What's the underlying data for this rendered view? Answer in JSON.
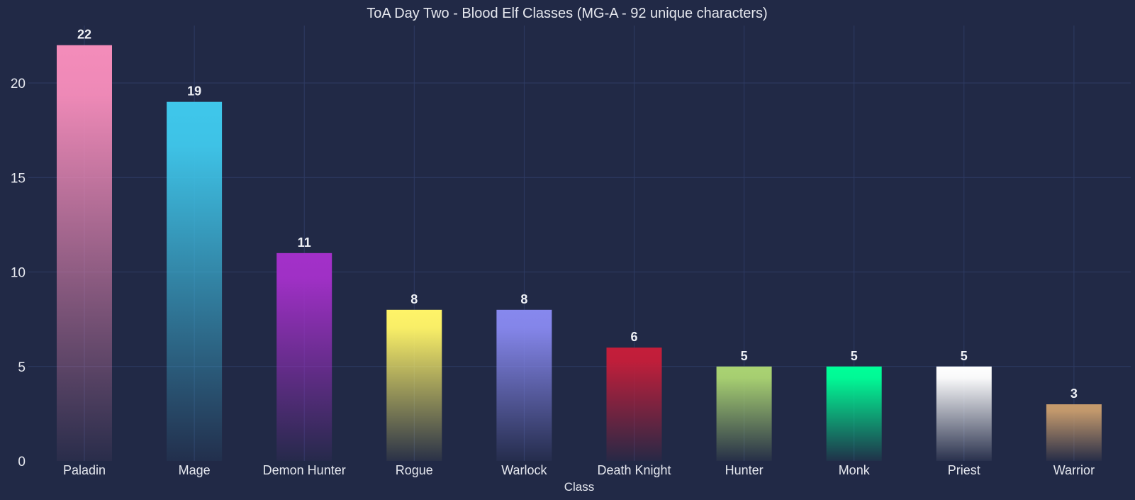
{
  "chart_data": {
    "type": "bar",
    "title": "ToA Day Two - Blood Elf Classes (MG-A - 92 unique characters)",
    "xlabel": "Class",
    "ylabel": "",
    "ylim": [
      0,
      23
    ],
    "yticks": [
      0,
      5,
      10,
      15,
      20
    ],
    "grid": true,
    "categories": [
      "Paladin",
      "Mage",
      "Demon Hunter",
      "Rogue",
      "Warlock",
      "Death Knight",
      "Hunter",
      "Monk",
      "Priest",
      "Warrior"
    ],
    "values": [
      22,
      19,
      11,
      8,
      8,
      6,
      5,
      5,
      5,
      3
    ],
    "colors": [
      "#f48cba",
      "#3fc7eb",
      "#a330c9",
      "#fff468",
      "#8788ee",
      "#c41e3a",
      "#aad372",
      "#00ff98",
      "#ffffff",
      "#c69b6d"
    ],
    "background": "#212946"
  }
}
